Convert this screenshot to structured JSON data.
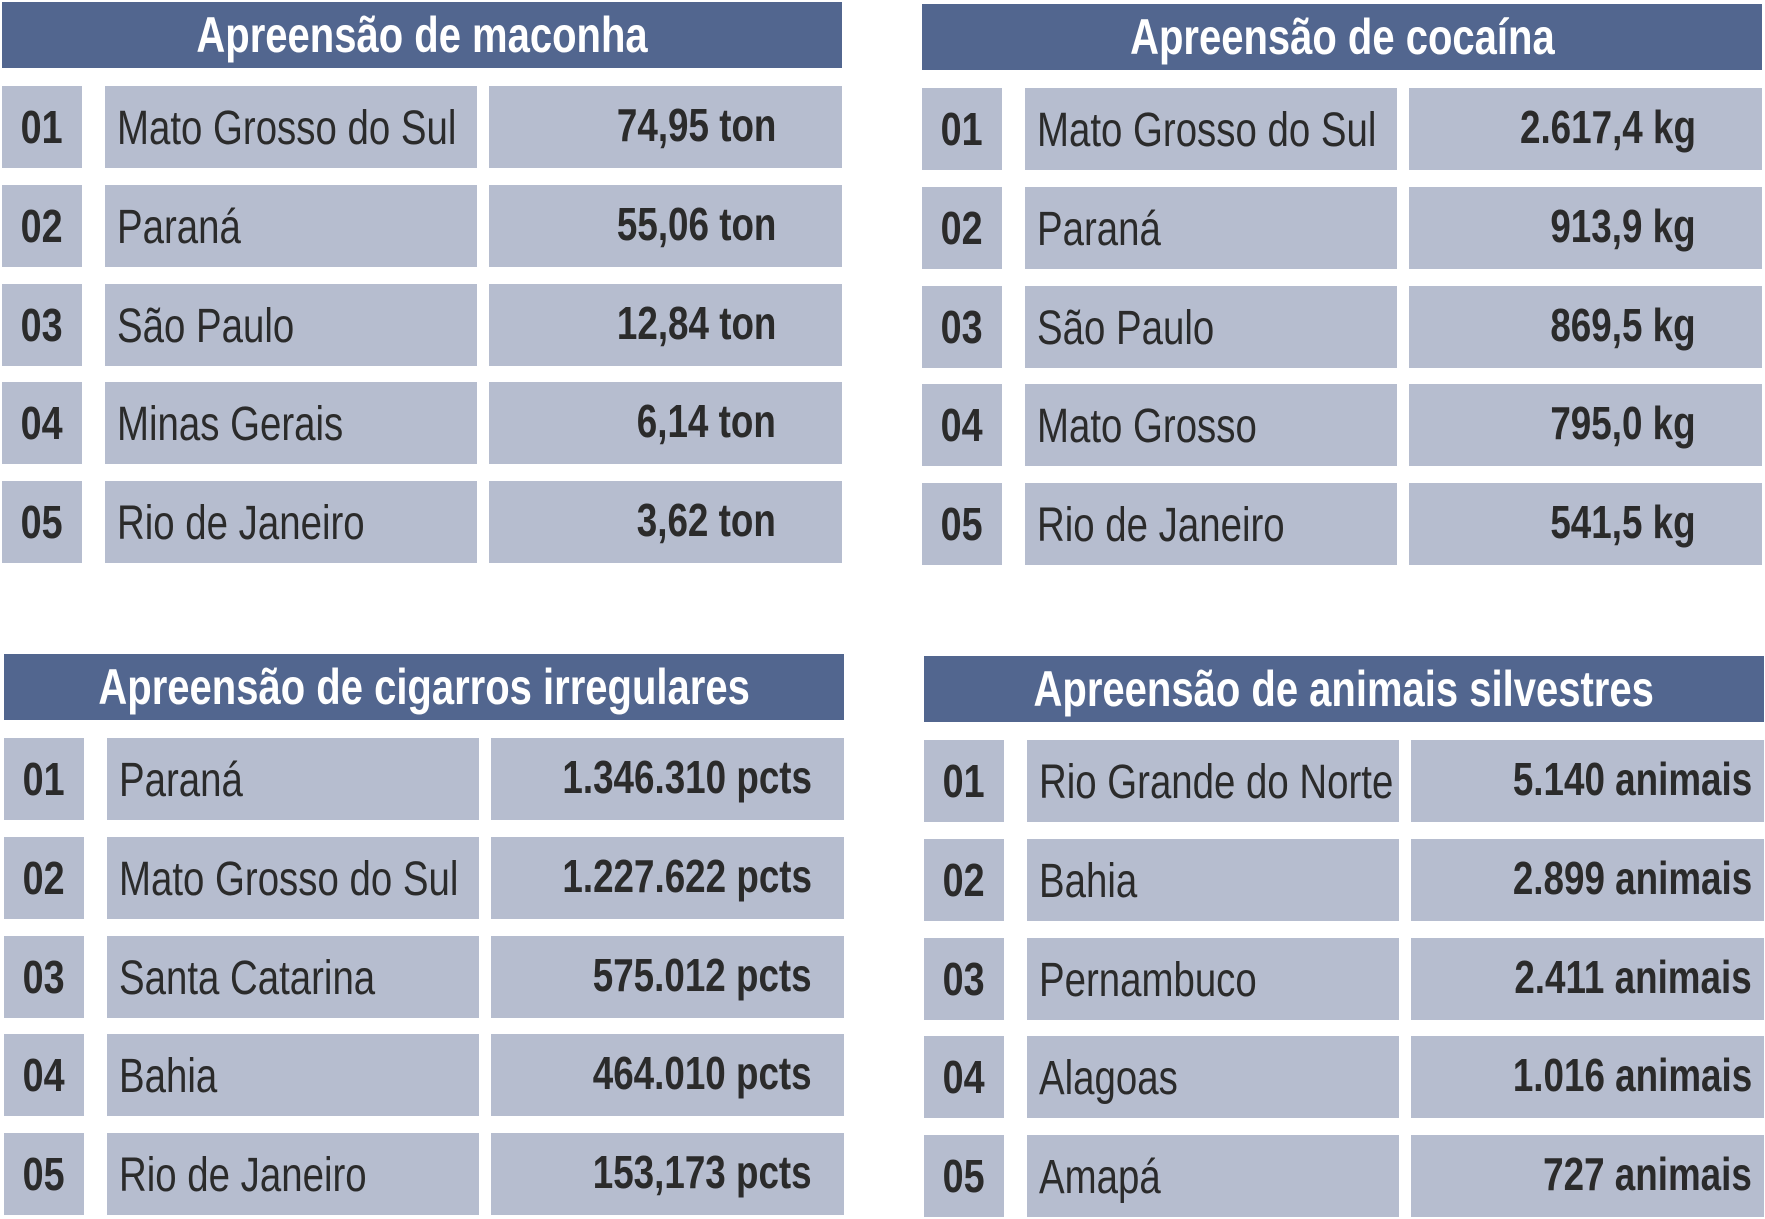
{
  "panels": [
    {
      "title": "Apreensão de maconha",
      "rows": [
        {
          "rank": "01",
          "state": "Mato Grosso do Sul",
          "value": "74,95 ton"
        },
        {
          "rank": "02",
          "state": "Paraná",
          "value": "55,06 ton"
        },
        {
          "rank": "03",
          "state": "São Paulo",
          "value": "12,84 ton"
        },
        {
          "rank": "04",
          "state": "Minas Gerais",
          "value": "6,14 ton"
        },
        {
          "rank": "05",
          "state": "Rio de Janeiro",
          "value": "3,62 ton"
        }
      ]
    },
    {
      "title": "Apreensão de cocaína",
      "rows": [
        {
          "rank": "01",
          "state": "Mato Grosso do Sul",
          "value": "2.617,4 kg"
        },
        {
          "rank": "02",
          "state": "Paraná",
          "value": "913,9 kg"
        },
        {
          "rank": "03",
          "state": "São Paulo",
          "value": "869,5 kg"
        },
        {
          "rank": "04",
          "state": "Mato Grosso",
          "value": "795,0 kg"
        },
        {
          "rank": "05",
          "state": "Rio de Janeiro",
          "value": "541,5 kg"
        }
      ]
    },
    {
      "title": "Apreensão de cigarros irregulares",
      "rows": [
        {
          "rank": "01",
          "state": "Paraná",
          "value": "1.346.310 pcts"
        },
        {
          "rank": "02",
          "state": "Mato Grosso do Sul",
          "value": "1.227.622 pcts"
        },
        {
          "rank": "03",
          "state": "Santa Catarina",
          "value": "575.012 pcts"
        },
        {
          "rank": "04",
          "state": "Bahia",
          "value": "464.010 pcts"
        },
        {
          "rank": "05",
          "state": "Rio de Janeiro",
          "value": "153,173 pcts"
        }
      ]
    },
    {
      "title": "Apreensão de animais silvestres",
      "rows": [
        {
          "rank": "01",
          "state": "Rio Grande do Norte",
          "value": "5.140 animais"
        },
        {
          "rank": "02",
          "state": "Bahia",
          "value": "2.899 animais"
        },
        {
          "rank": "03",
          "state": "Pernambuco",
          "value": "2.411 animais"
        },
        {
          "rank": "04",
          "state": "Alagoas",
          "value": "1.016 animais"
        },
        {
          "rank": "05",
          "state": "Amapá",
          "value": "727 animais"
        }
      ]
    }
  ],
  "colors": {
    "header_bg": "#52668f",
    "header_text": "#ffffff",
    "cell_bg": "#b6bdcf",
    "cell_text": "#2b2b2b"
  }
}
